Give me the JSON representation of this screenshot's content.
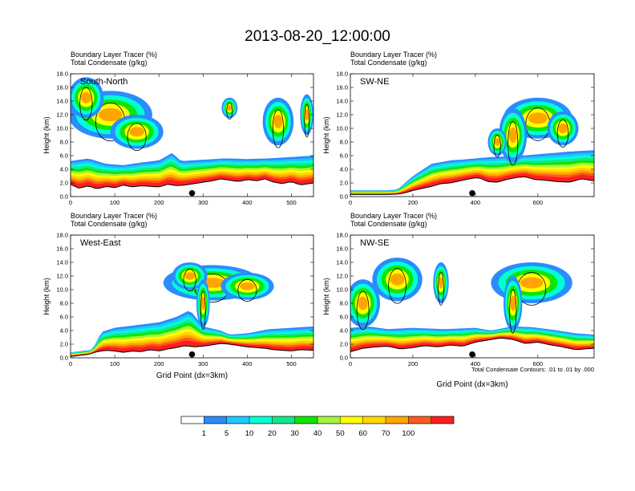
{
  "title": "2013-08-20_12:00:00",
  "colors": {
    "levels": [
      "#ffffff",
      "#2a8cff",
      "#1ec8ff",
      "#00ffd2",
      "#13e68a",
      "#10e500",
      "#a6f23c",
      "#ffff00",
      "#ffd700",
      "#ffa500",
      "#ff5a1e",
      "#ff1e1e"
    ],
    "outline": "#000000"
  },
  "colorbar": {
    "labels": [
      "1",
      "5",
      "10",
      "20",
      "30",
      "40",
      "50",
      "60",
      "70",
      "100"
    ]
  },
  "note": "Total Condensate Contours: .01 to .01 by .000",
  "chart_data": [
    {
      "type": "heatmap",
      "title": "South-North",
      "subtitle1": "Boundary Layer Tracer   (%)",
      "subtitle2": "Total Condensate   (g/kg)",
      "ylabel": "Height (km)",
      "xlabel": "",
      "ylim": [
        0,
        18
      ],
      "xlim": [
        0,
        550
      ],
      "yticks": [
        "0.0",
        "2.0",
        "4.0",
        "6.0",
        "8.0",
        "10.0",
        "12.0",
        "14.0",
        "16.0",
        "18.0"
      ],
      "xticks": [
        "0",
        "100",
        "200",
        "300",
        "400",
        "500"
      ],
      "xtick_values": [
        0,
        100,
        200,
        300,
        400,
        500
      ],
      "marker_x": 275,
      "terrain": [
        [
          0,
          1.8
        ],
        [
          20,
          1.2
        ],
        [
          40,
          1.6
        ],
        [
          60,
          1.1
        ],
        [
          80,
          1.5
        ],
        [
          100,
          1.3
        ],
        [
          120,
          1.7
        ],
        [
          140,
          1.4
        ],
        [
          160,
          1.6
        ],
        [
          180,
          1.5
        ],
        [
          200,
          1.4
        ],
        [
          220,
          1.8
        ],
        [
          240,
          1.6
        ],
        [
          260,
          1.7
        ],
        [
          280,
          1.9
        ],
        [
          300,
          2.1
        ],
        [
          320,
          2.3
        ],
        [
          340,
          2.6
        ],
        [
          360,
          2.4
        ],
        [
          380,
          2.2
        ],
        [
          400,
          2.5
        ],
        [
          420,
          2.3
        ],
        [
          440,
          2.6
        ],
        [
          460,
          2.1
        ],
        [
          480,
          1.9
        ],
        [
          500,
          2.2
        ],
        [
          520,
          1.7
        ],
        [
          550,
          2.0
        ]
      ],
      "layers": [
        [
          0,
          5.2
        ],
        [
          40,
          5.6
        ],
        [
          80,
          4.8
        ],
        [
          120,
          4.6
        ],
        [
          160,
          5.0
        ],
        [
          200,
          5.3
        ],
        [
          230,
          6.4
        ],
        [
          250,
          5.2
        ],
        [
          300,
          5.4
        ],
        [
          350,
          5.6
        ],
        [
          400,
          5.5
        ],
        [
          450,
          5.6
        ],
        [
          500,
          5.8
        ],
        [
          550,
          6.0
        ]
      ],
      "clouds": [
        [
          90,
          12,
          95,
          3.5
        ],
        [
          35,
          14.5,
          40,
          3.0
        ],
        [
          150,
          9.5,
          60,
          2.5
        ],
        [
          470,
          11,
          35,
          3.5
        ],
        [
          360,
          13,
          18,
          1.5
        ],
        [
          535,
          12,
          15,
          3.0
        ]
      ]
    },
    {
      "type": "heatmap",
      "title": "SW-NE",
      "subtitle1": "Boundary Layer Tracer   (%)",
      "subtitle2": "Total Condensate   (g/kg)",
      "ylabel": "Height (km)",
      "xlabel": "",
      "ylim": [
        0,
        18
      ],
      "xlim": [
        0,
        780
      ],
      "yticks": [
        "0.0",
        "2.0",
        "4.0",
        "6.0",
        "8.0",
        "10.0",
        "12.0",
        "14.0",
        "16.0",
        "18.0"
      ],
      "xticks": [
        "0",
        "200",
        "400",
        "600"
      ],
      "xtick_values": [
        0,
        200,
        400,
        600
      ],
      "marker_x": 390,
      "terrain": [
        [
          0,
          0.3
        ],
        [
          120,
          0.3
        ],
        [
          160,
          0.4
        ],
        [
          180,
          0.6
        ],
        [
          200,
          0.9
        ],
        [
          230,
          1.2
        ],
        [
          260,
          1.5
        ],
        [
          290,
          1.9
        ],
        [
          320,
          2.0
        ],
        [
          350,
          2.3
        ],
        [
          380,
          2.6
        ],
        [
          410,
          2.8
        ],
        [
          440,
          2.2
        ],
        [
          470,
          2.1
        ],
        [
          500,
          2.5
        ],
        [
          530,
          2.8
        ],
        [
          560,
          2.9
        ],
        [
          590,
          2.5
        ],
        [
          620,
          2.4
        ],
        [
          660,
          2.2
        ],
        [
          700,
          2.1
        ],
        [
          740,
          2.6
        ],
        [
          780,
          2.3
        ]
      ],
      "layers": [
        [
          0,
          0.9
        ],
        [
          100,
          0.9
        ],
        [
          150,
          1.0
        ],
        [
          200,
          3.0
        ],
        [
          260,
          4.8
        ],
        [
          320,
          5.3
        ],
        [
          380,
          5.5
        ],
        [
          450,
          5.8
        ],
        [
          520,
          5.9
        ],
        [
          600,
          6.2
        ],
        [
          700,
          6.6
        ],
        [
          780,
          6.8
        ]
      ],
      "clouds": [
        [
          600,
          11.5,
          110,
          3.0
        ],
        [
          520,
          9,
          45,
          4.0
        ],
        [
          680,
          10,
          50,
          2.5
        ],
        [
          470,
          8,
          30,
          2.0
        ]
      ]
    },
    {
      "type": "heatmap",
      "title": "West-East",
      "subtitle1": "Boundary Layer Tracer   (%)",
      "subtitle2": "Total Condensate   (g/kg)",
      "ylabel": "Height (km)",
      "xlabel": "Grid Point (dx=3km)",
      "ylim": [
        0,
        18
      ],
      "xlim": [
        0,
        550
      ],
      "yticks": [
        "0.0",
        "2.0",
        "4.0",
        "6.0",
        "8.0",
        "10.0",
        "12.0",
        "14.0",
        "16.0",
        "18.0"
      ],
      "xticks": [
        "0",
        "100",
        "200",
        "300",
        "400",
        "500"
      ],
      "xtick_values": [
        0,
        100,
        200,
        300,
        400,
        500
      ],
      "marker_x": 275,
      "terrain": [
        [
          0,
          0.2
        ],
        [
          40,
          0.5
        ],
        [
          60,
          0.9
        ],
        [
          80,
          1.1
        ],
        [
          100,
          1.0
        ],
        [
          120,
          0.8
        ],
        [
          140,
          1.0
        ],
        [
          160,
          0.9
        ],
        [
          180,
          1.2
        ],
        [
          200,
          1.0
        ],
        [
          220,
          1.3
        ],
        [
          240,
          1.5
        ],
        [
          260,
          1.8
        ],
        [
          280,
          1.6
        ],
        [
          300,
          1.7
        ],
        [
          320,
          1.9
        ],
        [
          340,
          2.1
        ],
        [
          360,
          2.0
        ],
        [
          380,
          1.8
        ],
        [
          400,
          1.6
        ],
        [
          420,
          1.5
        ],
        [
          440,
          1.4
        ],
        [
          460,
          1.2
        ],
        [
          480,
          1.1
        ],
        [
          500,
          1.0
        ],
        [
          520,
          1.2
        ],
        [
          550,
          1.1
        ]
      ],
      "layers": [
        [
          0,
          0.8
        ],
        [
          50,
          1.2
        ],
        [
          70,
          3.8
        ],
        [
          100,
          4.4
        ],
        [
          150,
          4.8
        ],
        [
          200,
          5.2
        ],
        [
          240,
          6.0
        ],
        [
          270,
          7.0
        ],
        [
          300,
          4.6
        ],
        [
          340,
          4.0
        ],
        [
          360,
          3.4
        ],
        [
          400,
          3.6
        ],
        [
          450,
          4.2
        ],
        [
          500,
          4.4
        ],
        [
          550,
          4.6
        ]
      ],
      "clouds": [
        [
          320,
          11,
          110,
          2.6
        ],
        [
          270,
          12,
          40,
          2.0
        ],
        [
          400,
          10.5,
          60,
          2.0
        ],
        [
          300,
          8,
          15,
          3.5
        ]
      ]
    },
    {
      "type": "heatmap",
      "title": "NW-SE",
      "subtitle1": "Boundary Layer Tracer   (%)",
      "subtitle2": "Total Condensate   (g/kg)",
      "ylabel": "Height (km)",
      "xlabel": "Grid Point (dx=3km)",
      "ylim": [
        0,
        18
      ],
      "xlim": [
        0,
        780
      ],
      "yticks": [
        "0.0",
        "2.0",
        "4.0",
        "6.0",
        "8.0",
        "10.0",
        "12.0",
        "14.0",
        "16.0",
        "18.0"
      ],
      "xticks": [
        "0",
        "200",
        "400",
        "600"
      ],
      "xtick_values": [
        0,
        200,
        400,
        600
      ],
      "marker_x": 390,
      "terrain": [
        [
          0,
          0.9
        ],
        [
          40,
          1.4
        ],
        [
          80,
          1.6
        ],
        [
          120,
          1.7
        ],
        [
          160,
          1.3
        ],
        [
          200,
          1.5
        ],
        [
          240,
          1.8
        ],
        [
          280,
          1.6
        ],
        [
          320,
          1.9
        ],
        [
          360,
          1.7
        ],
        [
          400,
          2.3
        ],
        [
          440,
          2.6
        ],
        [
          480,
          2.9
        ],
        [
          520,
          2.7
        ],
        [
          560,
          2.1
        ],
        [
          600,
          2.3
        ],
        [
          640,
          1.9
        ],
        [
          680,
          1.6
        ],
        [
          720,
          1.2
        ],
        [
          780,
          1.4
        ]
      ],
      "layers": [
        [
          0,
          4.4
        ],
        [
          60,
          4.6
        ],
        [
          120,
          4.2
        ],
        [
          200,
          4.4
        ],
        [
          300,
          4.2
        ],
        [
          400,
          4.4
        ],
        [
          450,
          4.0
        ],
        [
          520,
          4.6
        ],
        [
          580,
          4.5
        ],
        [
          650,
          4.1
        ],
        [
          720,
          3.6
        ],
        [
          780,
          3.4
        ]
      ],
      "clouds": [
        [
          580,
          11,
          130,
          3.0
        ],
        [
          150,
          11.5,
          80,
          3.2
        ],
        [
          40,
          8,
          55,
          3.5
        ],
        [
          520,
          8,
          30,
          4.0
        ],
        [
          290,
          11,
          25,
          3.0
        ]
      ]
    }
  ]
}
